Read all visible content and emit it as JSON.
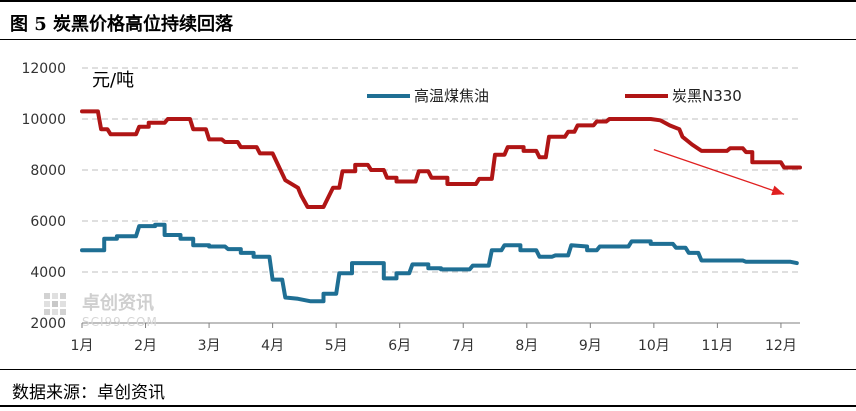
{
  "figure": {
    "title": "图 5  炭黑价格高位持续回落",
    "source": "数据来源：卓创资讯"
  },
  "watermark": {
    "text": "卓创资讯",
    "sub": "SCI99.COM"
  },
  "colors": {
    "coal_tar": "#1f6f94",
    "n330": "#b01515",
    "arrow": "#e02020"
  },
  "chart_data": {
    "type": "line",
    "title": "",
    "unit_label": "元/吨",
    "ylim": [
      2000,
      12000
    ],
    "yticks": [
      2000,
      4000,
      6000,
      8000,
      10000,
      12000
    ],
    "xlim": [
      1,
      12.3
    ],
    "x_tick_labels": [
      {
        "x": 1,
        "label": "1月"
      },
      {
        "x": 2,
        "label": "2月"
      },
      {
        "x": 3,
        "label": "3月"
      },
      {
        "x": 4,
        "label": "4月"
      },
      {
        "x": 5,
        "label": "5月"
      },
      {
        "x": 6,
        "label": "6月"
      },
      {
        "x": 7,
        "label": "7月"
      },
      {
        "x": 8,
        "label": "8月"
      },
      {
        "x": 9,
        "label": "9月"
      },
      {
        "x": 10,
        "label": "10月"
      },
      {
        "x": 11,
        "label": "11月"
      },
      {
        "x": 12,
        "label": "12月"
      }
    ],
    "grid": "horizontal-dashed",
    "legend_position": "top",
    "series": [
      {
        "name": "高温煤焦油",
        "color_key": "coal_tar",
        "points": [
          [
            1.0,
            4850
          ],
          [
            1.35,
            4850
          ],
          [
            1.35,
            5300
          ],
          [
            1.55,
            5300
          ],
          [
            1.55,
            5400
          ],
          [
            1.85,
            5400
          ],
          [
            1.9,
            5800
          ],
          [
            2.15,
            5800
          ],
          [
            2.15,
            5850
          ],
          [
            2.3,
            5850
          ],
          [
            2.3,
            5450
          ],
          [
            2.55,
            5450
          ],
          [
            2.55,
            5300
          ],
          [
            2.75,
            5300
          ],
          [
            2.75,
            5050
          ],
          [
            3.0,
            5050
          ],
          [
            3.0,
            5000
          ],
          [
            3.25,
            5000
          ],
          [
            3.3,
            4900
          ],
          [
            3.5,
            4900
          ],
          [
            3.5,
            4750
          ],
          [
            3.7,
            4750
          ],
          [
            3.7,
            4600
          ],
          [
            3.95,
            4600
          ],
          [
            4.0,
            3700
          ],
          [
            4.15,
            3700
          ],
          [
            4.2,
            3000
          ],
          [
            4.4,
            2950
          ],
          [
            4.6,
            2850
          ],
          [
            4.8,
            2850
          ],
          [
            4.8,
            3150
          ],
          [
            5.0,
            3150
          ],
          [
            5.05,
            3950
          ],
          [
            5.25,
            3950
          ],
          [
            5.25,
            4350
          ],
          [
            5.75,
            4350
          ],
          [
            5.75,
            3750
          ],
          [
            5.95,
            3750
          ],
          [
            5.95,
            3950
          ],
          [
            6.15,
            3950
          ],
          [
            6.2,
            4300
          ],
          [
            6.45,
            4300
          ],
          [
            6.45,
            4150
          ],
          [
            6.65,
            4150
          ],
          [
            6.65,
            4100
          ],
          [
            7.1,
            4100
          ],
          [
            7.15,
            4250
          ],
          [
            7.4,
            4250
          ],
          [
            7.45,
            4850
          ],
          [
            7.6,
            4850
          ],
          [
            7.65,
            5050
          ],
          [
            7.9,
            5050
          ],
          [
            7.9,
            4850
          ],
          [
            8.15,
            4850
          ],
          [
            8.2,
            4600
          ],
          [
            8.4,
            4600
          ],
          [
            8.45,
            4650
          ],
          [
            8.65,
            4650
          ],
          [
            8.7,
            5050
          ],
          [
            8.95,
            5000
          ],
          [
            8.95,
            4850
          ],
          [
            9.1,
            4850
          ],
          [
            9.15,
            5000
          ],
          [
            9.6,
            5000
          ],
          [
            9.65,
            5200
          ],
          [
            9.95,
            5200
          ],
          [
            9.95,
            5100
          ],
          [
            10.3,
            5100
          ],
          [
            10.35,
            4950
          ],
          [
            10.5,
            4950
          ],
          [
            10.55,
            4750
          ],
          [
            10.7,
            4750
          ],
          [
            10.75,
            4450
          ],
          [
            11.4,
            4450
          ],
          [
            11.45,
            4400
          ],
          [
            12.15,
            4400
          ],
          [
            12.25,
            4350
          ]
        ]
      },
      {
        "name": "炭黑N330",
        "color_key": "n330",
        "points": [
          [
            1.0,
            10300
          ],
          [
            1.25,
            10300
          ],
          [
            1.3,
            9600
          ],
          [
            1.4,
            9600
          ],
          [
            1.45,
            9400
          ],
          [
            1.85,
            9400
          ],
          [
            1.9,
            9700
          ],
          [
            2.05,
            9700
          ],
          [
            2.05,
            9850
          ],
          [
            2.3,
            9850
          ],
          [
            2.35,
            10000
          ],
          [
            2.7,
            10000
          ],
          [
            2.75,
            9600
          ],
          [
            2.95,
            9600
          ],
          [
            3.0,
            9200
          ],
          [
            3.2,
            9200
          ],
          [
            3.25,
            9100
          ],
          [
            3.45,
            9100
          ],
          [
            3.5,
            8900
          ],
          [
            3.75,
            8900
          ],
          [
            3.8,
            8650
          ],
          [
            4.0,
            8650
          ],
          [
            4.2,
            7600
          ],
          [
            4.4,
            7300
          ],
          [
            4.45,
            7000
          ],
          [
            4.55,
            6550
          ],
          [
            4.8,
            6550
          ],
          [
            4.95,
            7300
          ],
          [
            5.05,
            7300
          ],
          [
            5.1,
            7950
          ],
          [
            5.3,
            7950
          ],
          [
            5.3,
            8200
          ],
          [
            5.5,
            8200
          ],
          [
            5.55,
            8000
          ],
          [
            5.75,
            8000
          ],
          [
            5.8,
            7700
          ],
          [
            5.95,
            7700
          ],
          [
            5.95,
            7550
          ],
          [
            6.25,
            7550
          ],
          [
            6.3,
            7950
          ],
          [
            6.45,
            7950
          ],
          [
            6.5,
            7700
          ],
          [
            6.75,
            7700
          ],
          [
            6.75,
            7450
          ],
          [
            7.2,
            7450
          ],
          [
            7.25,
            7650
          ],
          [
            7.45,
            7650
          ],
          [
            7.5,
            8600
          ],
          [
            7.65,
            8600
          ],
          [
            7.7,
            8900
          ],
          [
            7.95,
            8900
          ],
          [
            7.95,
            8750
          ],
          [
            8.15,
            8750
          ],
          [
            8.2,
            8500
          ],
          [
            8.3,
            8500
          ],
          [
            8.35,
            9300
          ],
          [
            8.6,
            9300
          ],
          [
            8.65,
            9500
          ],
          [
            8.75,
            9500
          ],
          [
            8.8,
            9750
          ],
          [
            9.05,
            9750
          ],
          [
            9.1,
            9900
          ],
          [
            9.25,
            9900
          ],
          [
            9.3,
            10000
          ],
          [
            9.95,
            10000
          ],
          [
            10.1,
            9950
          ],
          [
            10.25,
            9750
          ],
          [
            10.4,
            9600
          ],
          [
            10.45,
            9300
          ],
          [
            10.6,
            9000
          ],
          [
            10.75,
            8750
          ],
          [
            11.15,
            8750
          ],
          [
            11.2,
            8850
          ],
          [
            11.4,
            8850
          ],
          [
            11.45,
            8700
          ],
          [
            11.55,
            8700
          ],
          [
            11.55,
            8300
          ],
          [
            12.0,
            8300
          ],
          [
            12.05,
            8100
          ],
          [
            12.3,
            8100
          ]
        ]
      }
    ],
    "annotations": [
      {
        "type": "trend-arrow",
        "from": [
          10.0,
          8800
        ],
        "to": [
          12.05,
          7050
        ],
        "color_key": "arrow"
      }
    ]
  }
}
